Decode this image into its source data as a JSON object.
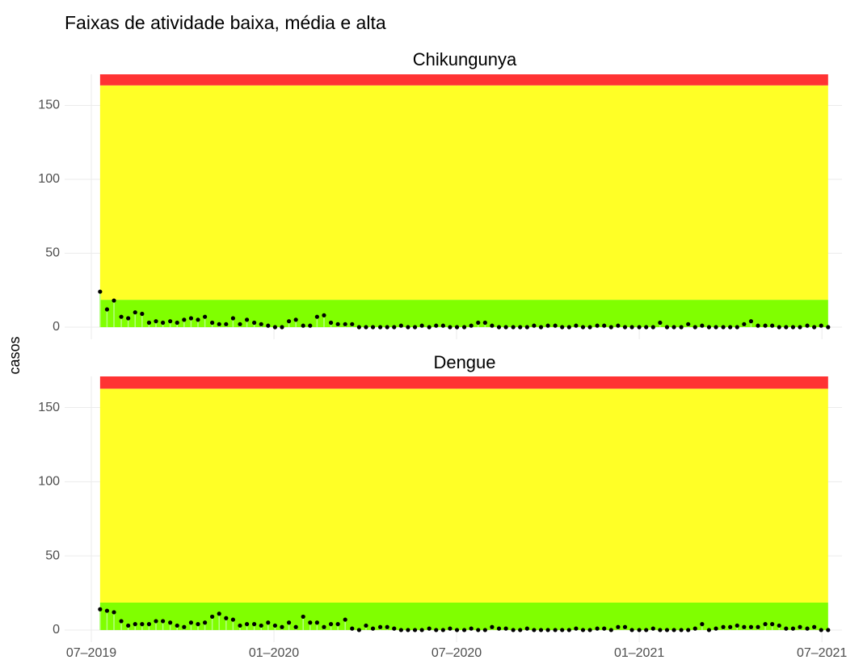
{
  "chart_data": {
    "type": "scatter",
    "title": "Faixas de atividade baixa, média e alta",
    "ylabel": "casos",
    "grid": true,
    "x": [
      2019.524,
      2019.543,
      2019.562,
      2019.582,
      2019.601,
      2019.62,
      2019.639,
      2019.658,
      2019.677,
      2019.696,
      2019.716,
      2019.735,
      2019.754,
      2019.773,
      2019.792,
      2019.811,
      2019.831,
      2019.85,
      2019.869,
      2019.888,
      2019.907,
      2019.926,
      2019.946,
      2019.965,
      2019.984,
      2020.003,
      2020.022,
      2020.041,
      2020.06,
      2020.08,
      2020.099,
      2020.118,
      2020.137,
      2020.156,
      2020.175,
      2020.195,
      2020.214,
      2020.233,
      2020.252,
      2020.271,
      2020.291,
      2020.31,
      2020.329,
      2020.348,
      2020.367,
      2020.386,
      2020.405,
      2020.425,
      2020.444,
      2020.463,
      2020.482,
      2020.501,
      2020.521,
      2020.54,
      2020.559,
      2020.578,
      2020.597,
      2020.616,
      2020.635,
      2020.655,
      2020.674,
      2020.693,
      2020.712,
      2020.731,
      2020.75,
      2020.77,
      2020.789,
      2020.808,
      2020.827,
      2020.846,
      2020.865,
      2020.885,
      2020.904,
      2020.923,
      2020.942,
      2020.961,
      2020.98,
      2021.0,
      2021.019,
      2021.038,
      2021.057,
      2021.076,
      2021.095,
      2021.115,
      2021.134,
      2021.153,
      2021.172,
      2021.191,
      2021.21,
      2021.23,
      2021.249,
      2021.268,
      2021.287,
      2021.306,
      2021.325,
      2021.345,
      2021.364,
      2021.383,
      2021.402,
      2021.421,
      2021.44,
      2021.46,
      2021.479,
      2021.498,
      2021.517
    ],
    "xlim": [
      2019.427,
      2021.555
    ],
    "xticks": [
      {
        "value": 2019.5,
        "label": "07–2019"
      },
      {
        "value": 2020.0,
        "label": "01–2020"
      },
      {
        "value": 2020.5,
        "label": "07–2020"
      },
      {
        "value": 2021.0,
        "label": "01–2021"
      },
      {
        "value": 2021.5,
        "label": "07–2021"
      }
    ],
    "ylim": [
      -8.2,
      171
    ],
    "yticks": [
      0,
      50,
      100,
      150
    ],
    "point_color": "#000000",
    "stem_color": "#b5ff80",
    "panels": [
      {
        "title": "Chikungunya",
        "bands": [
          {
            "from": 0,
            "to": 18.5,
            "color": "#80ff00"
          },
          {
            "from": 18.5,
            "to": 163.5,
            "color": "#ffff26"
          },
          {
            "from": 163.5,
            "to": 171,
            "color": "#ff3333"
          }
        ],
        "values": [
          24,
          12,
          18,
          7,
          6,
          10,
          9,
          3,
          4,
          3,
          4,
          3,
          5,
          6,
          5,
          7,
          3,
          2,
          2,
          6,
          2,
          5,
          3,
          2,
          1,
          0,
          0,
          4,
          5,
          1,
          1,
          7,
          8,
          3,
          2,
          2,
          2,
          0,
          0,
          0,
          0,
          0,
          0,
          1,
          0,
          0,
          1,
          0,
          1,
          1,
          0,
          0,
          0,
          1,
          3,
          3,
          1,
          0,
          0,
          0,
          0,
          0,
          1,
          0,
          1,
          1,
          0,
          0,
          1,
          0,
          0,
          1,
          1,
          0,
          1,
          0,
          0,
          0,
          0,
          0,
          3,
          0,
          0,
          0,
          2,
          0,
          1,
          0,
          0,
          0,
          0,
          0,
          2,
          4,
          1,
          1,
          1,
          0,
          0,
          0,
          0,
          1,
          0,
          1,
          0
        ]
      },
      {
        "title": "Dengue",
        "bands": [
          {
            "from": 0,
            "to": 18.5,
            "color": "#80ff00"
          },
          {
            "from": 18.5,
            "to": 162.7,
            "color": "#ffff26"
          },
          {
            "from": 162.7,
            "to": 171,
            "color": "#ff3333"
          }
        ],
        "values": [
          14,
          13,
          12,
          6,
          3,
          4,
          4,
          4,
          6,
          6,
          5,
          3,
          2,
          5,
          4,
          5,
          9,
          11,
          8,
          7,
          3,
          4,
          4,
          3,
          5,
          3,
          2,
          5,
          2,
          9,
          5,
          5,
          2,
          4,
          4,
          7,
          1,
          0,
          3,
          1,
          2,
          2,
          1,
          0,
          0,
          0,
          0,
          1,
          0,
          0,
          1,
          0,
          0,
          1,
          0,
          0,
          2,
          1,
          1,
          0,
          0,
          1,
          0,
          0,
          0,
          0,
          0,
          0,
          1,
          0,
          0,
          1,
          1,
          0,
          2,
          2,
          0,
          0,
          0,
          1,
          0,
          0,
          0,
          0,
          0,
          1,
          4,
          0,
          1,
          2,
          2,
          3,
          2,
          2,
          2,
          4,
          4,
          3,
          1,
          1,
          2,
          1,
          2,
          0,
          0
        ]
      }
    ]
  }
}
